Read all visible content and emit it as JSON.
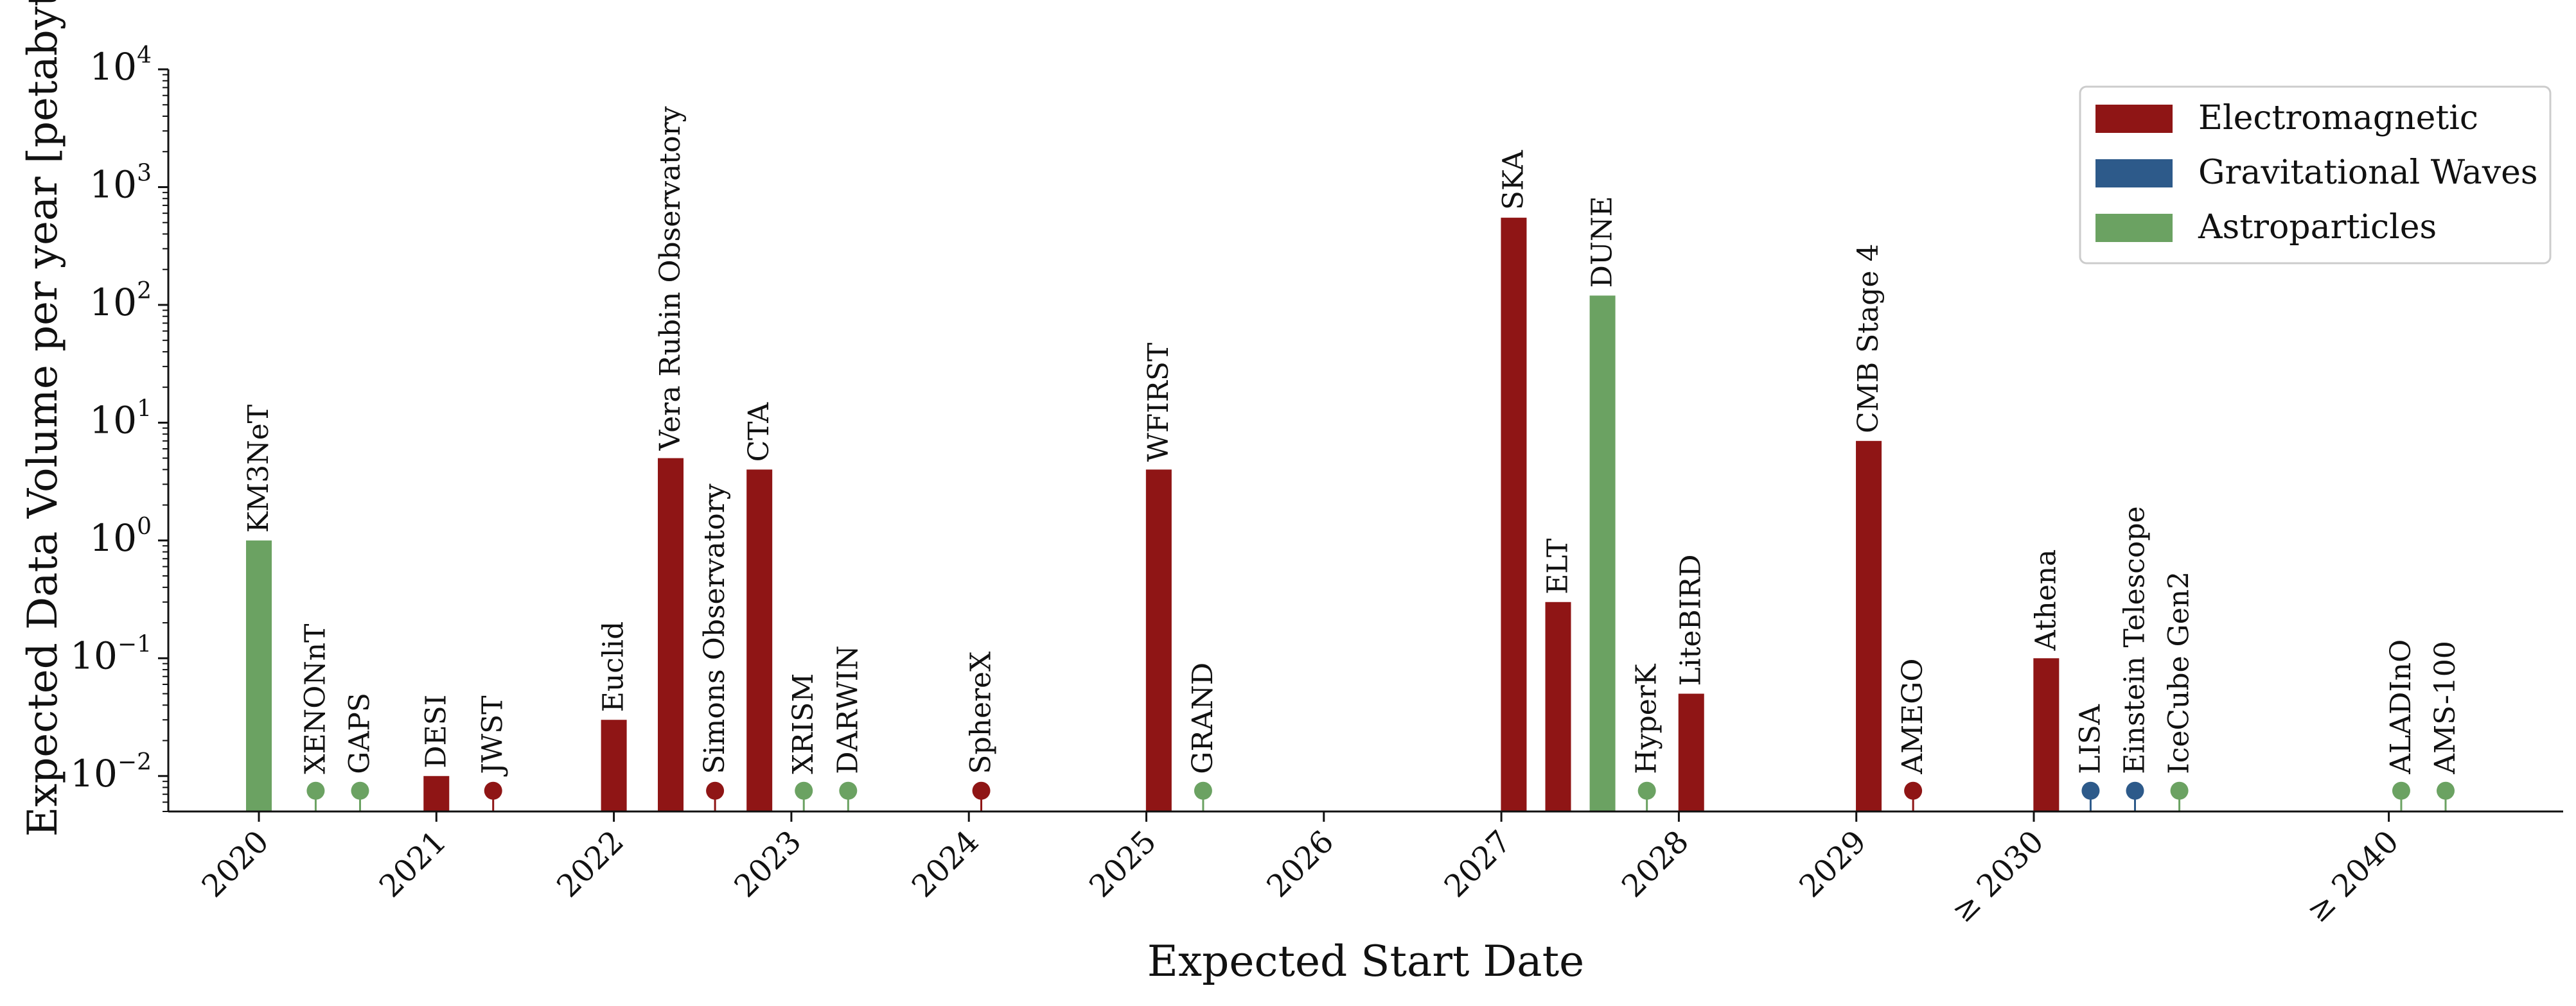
{
  "chart_data": {
    "type": "bar",
    "xlabel": "Expected Start Date",
    "ylabel": "Expected Data Volume per year [petabytes]",
    "yscale": "log",
    "ylim": [
      0.005,
      10000
    ],
    "y_ticks": [
      {
        "value": 0.01,
        "base": "10",
        "exp": "−2"
      },
      {
        "value": 0.1,
        "base": "10",
        "exp": "−1"
      },
      {
        "value": 1,
        "base": "10",
        "exp": "0"
      },
      {
        "value": 10,
        "base": "10",
        "exp": "1"
      },
      {
        "value": 100,
        "base": "10",
        "exp": "2"
      },
      {
        "value": 1000,
        "base": "10",
        "exp": "3"
      },
      {
        "value": 10000,
        "base": "10",
        "exp": "4"
      }
    ],
    "x_ticks": [
      {
        "label": "2020",
        "x": 0
      },
      {
        "label": "2021",
        "x": 1
      },
      {
        "label": "2022",
        "x": 2
      },
      {
        "label": "2023",
        "x": 3
      },
      {
        "label": "2024",
        "x": 4
      },
      {
        "label": "2025",
        "x": 5
      },
      {
        "label": "2026",
        "x": 6
      },
      {
        "label": "2027",
        "x": 7
      },
      {
        "label": "2028",
        "x": 8
      },
      {
        "label": "2029",
        "x": 9
      },
      {
        "label": "≥ 2030",
        "x": 10
      },
      {
        "label": "≥ 2040",
        "x": 12
      }
    ],
    "legend": {
      "position": "top-right",
      "entries": [
        {
          "name": "Electromagnetic",
          "color": "#8f1515"
        },
        {
          "name": "Gravitational Waves",
          "color": "#2d5a8a"
        },
        {
          "name": "Astroparticles",
          "color": "#6ba262"
        }
      ]
    },
    "grid": false,
    "items": [
      {
        "name": "KM3NeT",
        "x": 0.0,
        "value": 1,
        "category": "Astroparticles",
        "mark": "bar"
      },
      {
        "name": "XENONnT",
        "x": 0.32,
        "value": null,
        "category": "Astroparticles",
        "mark": "marker"
      },
      {
        "name": "GAPS",
        "x": 0.57,
        "value": null,
        "category": "Astroparticles",
        "mark": "marker"
      },
      {
        "name": "DESI",
        "x": 1.0,
        "value": 0.01,
        "category": "Electromagnetic",
        "mark": "bar"
      },
      {
        "name": "JWST",
        "x": 1.32,
        "value": null,
        "category": "Electromagnetic",
        "mark": "marker"
      },
      {
        "name": "Euclid",
        "x": 2.0,
        "value": 0.03,
        "category": "Electromagnetic",
        "mark": "bar"
      },
      {
        "name": "Vera Rubin Observatory",
        "x": 2.32,
        "value": 5,
        "category": "Electromagnetic",
        "mark": "bar"
      },
      {
        "name": "Simons Observatory",
        "x": 2.57,
        "value": null,
        "category": "Electromagnetic",
        "mark": "marker"
      },
      {
        "name": "CTA",
        "x": 2.82,
        "value": 4,
        "category": "Electromagnetic",
        "mark": "bar"
      },
      {
        "name": "XRISM",
        "x": 3.07,
        "value": null,
        "category": "Astroparticles",
        "mark": "marker"
      },
      {
        "name": "DARWIN",
        "x": 3.32,
        "value": null,
        "category": "Astroparticles",
        "mark": "marker"
      },
      {
        "name": "SphereX",
        "x": 4.07,
        "value": null,
        "category": "Electromagnetic",
        "mark": "marker"
      },
      {
        "name": "WFIRST",
        "x": 5.07,
        "value": 4,
        "category": "Electromagnetic",
        "mark": "bar"
      },
      {
        "name": "GRAND",
        "x": 5.32,
        "value": null,
        "category": "Astroparticles",
        "mark": "marker"
      },
      {
        "name": "SKA",
        "x": 7.07,
        "value": 550,
        "category": "Electromagnetic",
        "mark": "bar"
      },
      {
        "name": "ELT",
        "x": 7.32,
        "value": 0.3,
        "category": "Electromagnetic",
        "mark": "bar"
      },
      {
        "name": "DUNE",
        "x": 7.57,
        "value": 120,
        "category": "Astroparticles",
        "mark": "bar"
      },
      {
        "name": "HyperK",
        "x": 7.82,
        "value": null,
        "category": "Astroparticles",
        "mark": "marker"
      },
      {
        "name": "LiteBIRD",
        "x": 8.07,
        "value": 0.05,
        "category": "Electromagnetic",
        "mark": "bar"
      },
      {
        "name": "CMB Stage 4",
        "x": 9.07,
        "value": 7,
        "category": "Electromagnetic",
        "mark": "bar"
      },
      {
        "name": "AMEGO",
        "x": 9.32,
        "value": null,
        "category": "Electromagnetic",
        "mark": "marker"
      },
      {
        "name": "Athena",
        "x": 10.07,
        "value": 0.1,
        "category": "Electromagnetic",
        "mark": "bar"
      },
      {
        "name": "LISA",
        "x": 10.32,
        "value": null,
        "category": "Gravitational Waves",
        "mark": "marker"
      },
      {
        "name": "Einstein Telescope",
        "x": 10.57,
        "value": null,
        "category": "Gravitational Waves",
        "mark": "marker"
      },
      {
        "name": "IceCube Gen2",
        "x": 10.82,
        "value": null,
        "category": "Astroparticles",
        "mark": "marker"
      },
      {
        "name": "ALADInO",
        "x": 12.07,
        "value": null,
        "category": "Astroparticles",
        "mark": "marker"
      },
      {
        "name": "AMS-100",
        "x": 12.32,
        "value": null,
        "category": "Astroparticles",
        "mark": "marker"
      }
    ]
  }
}
